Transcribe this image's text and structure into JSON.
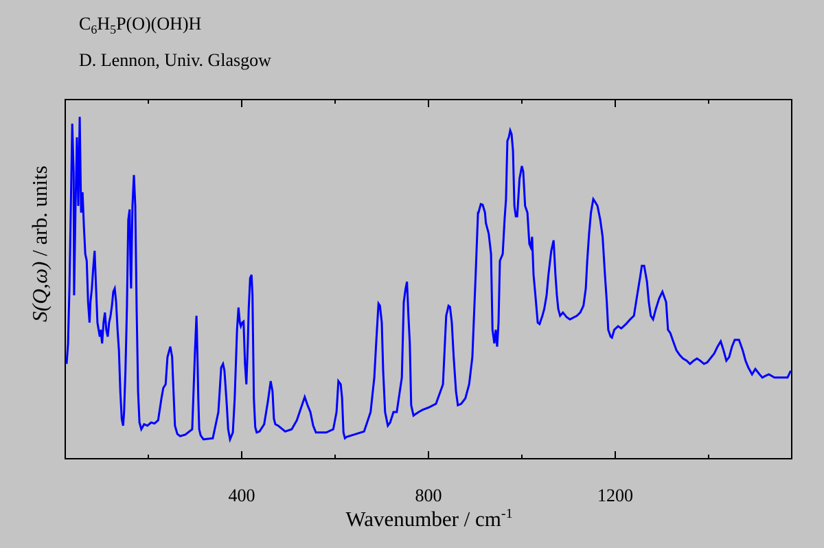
{
  "chart_data": {
    "type": "line",
    "title_parts": [
      "C",
      "6",
      "H",
      "5",
      "P(O)(OH)H"
    ],
    "subtitle": "D. Lennon, Univ. Glasgow",
    "xlabel_parts": [
      "Wavenumber / cm",
      "-1"
    ],
    "ylabel_parts": [
      "S(Q,ω)",
      " / arb. units"
    ],
    "xlim": [
      22,
      1578
    ],
    "ylim": [
      0,
      100
    ],
    "major_ticks": [
      400,
      800,
      1200
    ],
    "minor_ticks": [
      200,
      600,
      1000,
      1400
    ],
    "grid": false,
    "series": [
      {
        "name": "S(Q,ω)",
        "color": "#0000ff",
        "points": [
          [
            25,
            26.4
          ],
          [
            28,
            32.1
          ],
          [
            31,
            47.4
          ],
          [
            34,
            70.4
          ],
          [
            37,
            93.3
          ],
          [
            40,
            79.9
          ],
          [
            41,
            45.5
          ],
          [
            44,
            70.4
          ],
          [
            47,
            89.5
          ],
          [
            50,
            70.4
          ],
          [
            53,
            95.2
          ],
          [
            56,
            68.5
          ],
          [
            59,
            74.2
          ],
          [
            62,
            64.6
          ],
          [
            65,
            57.0
          ],
          [
            68,
            55.1
          ],
          [
            71,
            43.6
          ],
          [
            74,
            37.9
          ],
          [
            76,
            43.6
          ],
          [
            79,
            47.4
          ],
          [
            82,
            53.2
          ],
          [
            85,
            57.9
          ],
          [
            88,
            47.4
          ],
          [
            91,
            37.9
          ],
          [
            96,
            34.0
          ],
          [
            98,
            35.9
          ],
          [
            101,
            32.1
          ],
          [
            104,
            37.9
          ],
          [
            107,
            40.7
          ],
          [
            110,
            35.9
          ],
          [
            113,
            34.0
          ],
          [
            116,
            37.9
          ],
          [
            119,
            39.8
          ],
          [
            122,
            42.6
          ],
          [
            125,
            46.5
          ],
          [
            128,
            47.4
          ],
          [
            131,
            43.6
          ],
          [
            134,
            35.9
          ],
          [
            137,
            30.2
          ],
          [
            140,
            18.7
          ],
          [
            143,
            11.1
          ],
          [
            146,
            9.2
          ],
          [
            148,
            13.0
          ],
          [
            151,
            24.5
          ],
          [
            154,
            41.7
          ],
          [
            157,
            66.5
          ],
          [
            160,
            69.4
          ],
          [
            162,
            51.2
          ],
          [
            163,
            47.4
          ],
          [
            166,
            70.4
          ],
          [
            169,
            79.0
          ],
          [
            172,
            70.4
          ],
          [
            175,
            41.7
          ],
          [
            178,
            18.7
          ],
          [
            181,
            10.1
          ],
          [
            185,
            8.2
          ],
          [
            191,
            9.6
          ],
          [
            198,
            9.2
          ],
          [
            206,
            10.1
          ],
          [
            213,
            9.8
          ],
          [
            221,
            10.7
          ],
          [
            228,
            16.8
          ],
          [
            232,
            19.7
          ],
          [
            237,
            20.7
          ],
          [
            241,
            28.3
          ],
          [
            247,
            31.2
          ],
          [
            251,
            28.3
          ],
          [
            254,
            18.7
          ],
          [
            257,
            9.2
          ],
          [
            262,
            6.9
          ],
          [
            268,
            6.3
          ],
          [
            279,
            6.7
          ],
          [
            294,
            8.2
          ],
          [
            300,
            30.2
          ],
          [
            303,
            39.8
          ],
          [
            304,
            35.9
          ],
          [
            307,
            16.8
          ],
          [
            309,
            8.2
          ],
          [
            312,
            6.5
          ],
          [
            318,
            5.4
          ],
          [
            338,
            5.7
          ],
          [
            350,
            13.0
          ],
          [
            356,
            25.4
          ],
          [
            360,
            26.4
          ],
          [
            363,
            24.5
          ],
          [
            368,
            14.9
          ],
          [
            371,
            8.2
          ],
          [
            375,
            5.4
          ],
          [
            381,
            7.3
          ],
          [
            385,
            16.8
          ],
          [
            390,
            35.9
          ],
          [
            393,
            42.1
          ],
          [
            396,
            37.9
          ],
          [
            398,
            36.9
          ],
          [
            401,
            37.9
          ],
          [
            404,
            38.2
          ],
          [
            407,
            26.4
          ],
          [
            410,
            20.7
          ],
          [
            413,
            32.1
          ],
          [
            415,
            41.7
          ],
          [
            418,
            50.3
          ],
          [
            421,
            51.2
          ],
          [
            423,
            45.5
          ],
          [
            426,
            16.8
          ],
          [
            429,
            8.8
          ],
          [
            432,
            7.3
          ],
          [
            438,
            7.6
          ],
          [
            448,
            9.6
          ],
          [
            456,
            15.9
          ],
          [
            462,
            21.6
          ],
          [
            466,
            18.7
          ],
          [
            469,
            11.1
          ],
          [
            472,
            9.6
          ],
          [
            478,
            9.2
          ],
          [
            493,
            7.6
          ],
          [
            507,
            8.2
          ],
          [
            518,
            10.7
          ],
          [
            529,
            14.9
          ],
          [
            535,
            17.2
          ],
          [
            541,
            14.9
          ],
          [
            547,
            13.0
          ],
          [
            553,
            9.2
          ],
          [
            559,
            7.3
          ],
          [
            568,
            7.3
          ],
          [
            581,
            7.3
          ],
          [
            596,
            8.2
          ],
          [
            603,
            13.0
          ],
          [
            607,
            21.6
          ],
          [
            612,
            20.7
          ],
          [
            615,
            16.8
          ],
          [
            618,
            7.3
          ],
          [
            621,
            5.7
          ],
          [
            625,
            6.1
          ],
          [
            640,
            6.7
          ],
          [
            662,
            7.6
          ],
          [
            676,
            13.0
          ],
          [
            684,
            22.6
          ],
          [
            688,
            32.1
          ],
          [
            693,
            43.2
          ],
          [
            696,
            42.6
          ],
          [
            700,
            37.9
          ],
          [
            703,
            24.5
          ],
          [
            707,
            13.0
          ],
          [
            713,
            9.2
          ],
          [
            718,
            10.1
          ],
          [
            725,
            13.0
          ],
          [
            732,
            13.0
          ],
          [
            743,
            22.6
          ],
          [
            747,
            43.6
          ],
          [
            751,
            47.4
          ],
          [
            754,
            49.3
          ],
          [
            757,
            39.8
          ],
          [
            760,
            32.1
          ],
          [
            763,
            14.9
          ],
          [
            768,
            12.0
          ],
          [
            772,
            12.4
          ],
          [
            779,
            13.0
          ],
          [
            787,
            13.6
          ],
          [
            801,
            14.3
          ],
          [
            816,
            15.3
          ],
          [
            831,
            20.7
          ],
          [
            838,
            39.8
          ],
          [
            843,
            42.6
          ],
          [
            846,
            42.3
          ],
          [
            850,
            37.9
          ],
          [
            854,
            28.3
          ],
          [
            859,
            18.7
          ],
          [
            863,
            14.9
          ],
          [
            870,
            15.3
          ],
          [
            879,
            16.8
          ],
          [
            887,
            20.7
          ],
          [
            894,
            28.3
          ],
          [
            901,
            51.2
          ],
          [
            906,
            68.5
          ],
          [
            907,
            68.5
          ],
          [
            912,
            70.9
          ],
          [
            916,
            70.7
          ],
          [
            921,
            68.5
          ],
          [
            923,
            65.6
          ],
          [
            929,
            62.7
          ],
          [
            934,
            57.0
          ],
          [
            937,
            35.9
          ],
          [
            941,
            32.1
          ],
          [
            944,
            35.9
          ],
          [
            947,
            31.2
          ],
          [
            950,
            37.9
          ],
          [
            953,
            55.1
          ],
          [
            959,
            57.0
          ],
          [
            963,
            66.5
          ],
          [
            966,
            72.3
          ],
          [
            969,
            88.5
          ],
          [
            972,
            89.5
          ],
          [
            975,
            91.4
          ],
          [
            978,
            90.4
          ],
          [
            981,
            85.7
          ],
          [
            984,
            70.4
          ],
          [
            987,
            67.5
          ],
          [
            990,
            67.5
          ],
          [
            995,
            78.0
          ],
          [
            1000,
            81.5
          ],
          [
            1003,
            79.9
          ],
          [
            1007,
            70.4
          ],
          [
            1012,
            68.5
          ],
          [
            1016,
            59.8
          ],
          [
            1019,
            58.9
          ],
          [
            1022,
            61.8
          ],
          [
            1025,
            51.2
          ],
          [
            1029,
            45.5
          ],
          [
            1034,
            37.9
          ],
          [
            1038,
            37.5
          ],
          [
            1044,
            39.8
          ],
          [
            1048,
            41.7
          ],
          [
            1053,
            45.5
          ],
          [
            1057,
            51.2
          ],
          [
            1063,
            57.9
          ],
          [
            1068,
            60.8
          ],
          [
            1072,
            51.2
          ],
          [
            1075,
            45.5
          ],
          [
            1078,
            41.7
          ],
          [
            1082,
            39.8
          ],
          [
            1088,
            40.7
          ],
          [
            1096,
            39.4
          ],
          [
            1103,
            38.8
          ],
          [
            1118,
            39.8
          ],
          [
            1125,
            40.7
          ],
          [
            1132,
            42.6
          ],
          [
            1137,
            47.4
          ],
          [
            1140,
            55.1
          ],
          [
            1144,
            62.7
          ],
          [
            1148,
            68.5
          ],
          [
            1153,
            72.3
          ],
          [
            1156,
            71.7
          ],
          [
            1162,
            70.4
          ],
          [
            1168,
            66.5
          ],
          [
            1173,
            61.8
          ],
          [
            1178,
            51.2
          ],
          [
            1182,
            43.6
          ],
          [
            1185,
            35.9
          ],
          [
            1190,
            34.0
          ],
          [
            1193,
            33.7
          ],
          [
            1198,
            35.9
          ],
          [
            1206,
            36.9
          ],
          [
            1213,
            36.3
          ],
          [
            1223,
            37.5
          ],
          [
            1232,
            38.8
          ],
          [
            1240,
            39.8
          ],
          [
            1247,
            45.5
          ],
          [
            1253,
            50.3
          ],
          [
            1257,
            53.7
          ],
          [
            1262,
            53.7
          ],
          [
            1268,
            49.3
          ],
          [
            1272,
            43.6
          ],
          [
            1276,
            39.8
          ],
          [
            1281,
            38.8
          ],
          [
            1287,
            41.7
          ],
          [
            1294,
            44.6
          ],
          [
            1301,
            46.5
          ],
          [
            1309,
            43.6
          ],
          [
            1313,
            35.9
          ],
          [
            1318,
            35.0
          ],
          [
            1323,
            33.1
          ],
          [
            1331,
            30.2
          ],
          [
            1338,
            28.9
          ],
          [
            1345,
            27.9
          ],
          [
            1353,
            27.3
          ],
          [
            1360,
            26.4
          ],
          [
            1368,
            27.3
          ],
          [
            1375,
            27.9
          ],
          [
            1382,
            27.3
          ],
          [
            1390,
            26.4
          ],
          [
            1397,
            26.8
          ],
          [
            1412,
            29.3
          ],
          [
            1419,
            31.2
          ],
          [
            1426,
            32.7
          ],
          [
            1432,
            30.2
          ],
          [
            1438,
            27.3
          ],
          [
            1444,
            28.3
          ],
          [
            1450,
            31.2
          ],
          [
            1456,
            33.1
          ],
          [
            1465,
            33.1
          ],
          [
            1473,
            30.2
          ],
          [
            1479,
            27.3
          ],
          [
            1485,
            25.4
          ],
          [
            1493,
            23.5
          ],
          [
            1500,
            25.0
          ],
          [
            1509,
            23.5
          ],
          [
            1515,
            22.6
          ],
          [
            1522,
            23.1
          ],
          [
            1529,
            23.5
          ],
          [
            1541,
            22.6
          ],
          [
            1548,
            22.6
          ],
          [
            1559,
            22.6
          ],
          [
            1569,
            22.6
          ],
          [
            1576,
            24.5
          ]
        ]
      }
    ]
  }
}
